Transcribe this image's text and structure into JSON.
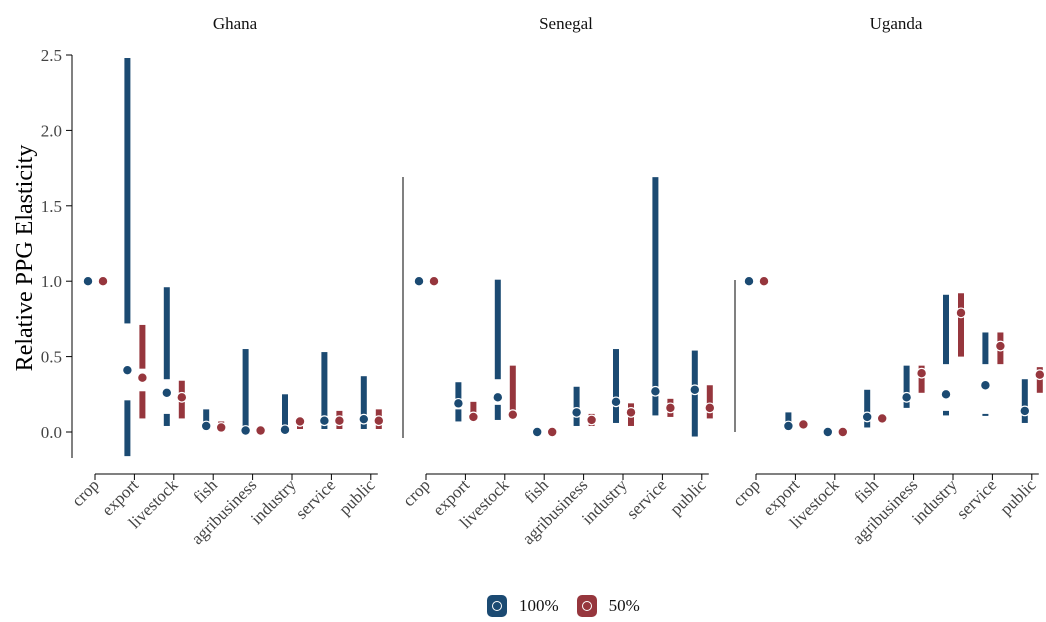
{
  "chart_data": {
    "type": "interval-dot",
    "ylabel": "Relative PPG Elasticity",
    "yticks": [
      "0.0",
      "0.5",
      "1.0",
      "1.5",
      "2.0",
      "2.5"
    ],
    "ylim": [
      -0.18,
      2.52
    ],
    "categories": [
      "crop",
      "export",
      "livestock",
      "fish",
      "agribusiness",
      "industry",
      "service",
      "public"
    ],
    "colors": {
      "100%": "#1b4a72",
      "50%": "#96363d"
    },
    "legend": {
      "position": "bottom",
      "items": [
        {
          "label": "100%",
          "color": "#1b4a72"
        },
        {
          "label": "50%",
          "color": "#96363d"
        }
      ]
    },
    "panels": [
      {
        "title": "Ghana",
        "series": [
          {
            "name": "100%",
            "points": [
              1.0,
              0.41,
              0.26,
              0.04,
              0.01,
              0.015,
              0.075,
              0.085
            ],
            "ranges": [
              null,
              [
                [
                  -0.16,
                  0.21
                ],
                [
                  0.72,
                  2.48
                ]
              ],
              [
                [
                  0.04,
                  0.12
                ],
                [
                  0.35,
                  0.96
                ]
              ],
              [
                [
                  0.01,
                  0.15
                ]
              ],
              [
                [
                  0.02,
                  0.55
                ]
              ],
              [
                [
                  0.03,
                  0.25
                ]
              ],
              [
                [
                  0.02,
                  0.53
                ]
              ],
              [
                [
                  0.02,
                  0.37
                ]
              ]
            ]
          },
          {
            "name": "50%",
            "points": [
              1.0,
              0.36,
              0.23,
              0.03,
              0.01,
              0.07,
              0.075,
              0.075
            ],
            "ranges": [
              null,
              [
                [
                  0.09,
                  0.27
                ],
                [
                  0.42,
                  0.71
                ]
              ],
              [
                [
                  0.09,
                  0.34
                ]
              ],
              [
                [
                  0.01,
                  0.07
                ]
              ],
              [
                [
                  0.005,
                  0.02
                ]
              ],
              [
                [
                  0.02,
                  0.1
                ]
              ],
              [
                [
                  0.02,
                  0.14
                ]
              ],
              [
                [
                  0.02,
                  0.15
                ]
              ]
            ]
          }
        ]
      },
      {
        "title": "Senegal",
        "series": [
          {
            "name": "100%",
            "points": [
              1.0,
              0.19,
              0.23,
              0.0,
              0.13,
              0.2,
              0.27,
              0.28
            ],
            "ranges": [
              null,
              [
                [
                  0.07,
                  0.15
                ],
                [
                  0.22,
                  0.33
                ]
              ],
              [
                [
                  0.08,
                  0.18
                ],
                [
                  0.35,
                  1.01
                ]
              ],
              [
                [
                  -0.01,
                  0.01
                ]
              ],
              [
                [
                  0.04,
                  0.3
                ]
              ],
              [
                [
                  0.06,
                  0.55
                ]
              ],
              [
                [
                  0.11,
                  1.69
                ]
              ],
              [
                [
                  -0.03,
                  0.54
                ]
              ]
            ]
          },
          {
            "name": "50%",
            "points": [
              1.0,
              0.1,
              0.115,
              0.0,
              0.08,
              0.13,
              0.16,
              0.16
            ],
            "ranges": [
              null,
              [
                [
                  0.07,
                  0.2
                ]
              ],
              [
                [
                  0.14,
                  0.44
                ]
              ],
              [
                [
                  -0.01,
                  0.01
                ]
              ],
              [
                [
                  0.04,
                  0.12
                ]
              ],
              [
                [
                  0.04,
                  0.19
                ]
              ],
              [
                [
                  0.1,
                  0.22
                ]
              ],
              [
                [
                  0.09,
                  0.31
                ]
              ]
            ]
          }
        ]
      },
      {
        "title": "Uganda",
        "series": [
          {
            "name": "100%",
            "points": [
              1.0,
              0.04,
              0.0,
              0.1,
              0.23,
              0.25,
              0.31,
              0.14
            ],
            "ranges": [
              null,
              [
                [
                  0.01,
                  0.13
                ]
              ],
              [
                [
                  -0.01,
                  0.01
                ]
              ],
              [
                [
                  0.03,
                  0.28
                ]
              ],
              [
                [
                  0.16,
                  0.44
                ]
              ],
              [
                [
                  0.11,
                  0.14
                ],
                [
                  0.45,
                  0.91
                ]
              ],
              [
                [
                  0.11,
                  0.12
                ],
                [
                  0.45,
                  0.66
                ]
              ],
              [
                [
                  0.06,
                  0.35
                ]
              ]
            ]
          },
          {
            "name": "50%",
            "points": [
              1.0,
              0.05,
              0.0,
              0.09,
              0.39,
              0.79,
              0.57,
              0.38
            ],
            "ranges": [
              null,
              [
                [
                  0.03,
                  0.07
                ]
              ],
              [
                [
                  -0.01,
                  0.01
                ]
              ],
              [
                [
                  0.07,
                  0.11
                ]
              ],
              [
                [
                  0.26,
                  0.44
                ]
              ],
              [
                [
                  0.5,
                  0.92
                ]
              ],
              [
                [
                  0.45,
                  0.66
                ]
              ],
              [
                [
                  0.26,
                  0.43
                ]
              ]
            ]
          }
        ]
      }
    ]
  }
}
